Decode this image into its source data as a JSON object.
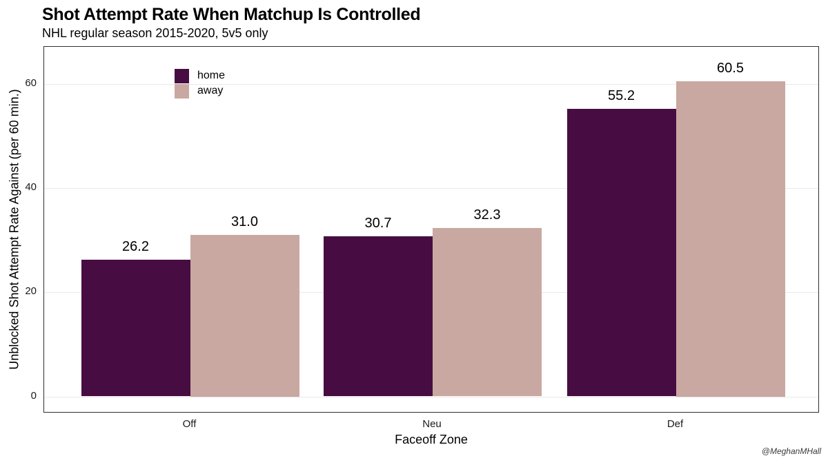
{
  "header": {
    "title": "Shot Attempt Rate When Matchup Is Controlled",
    "subtitle": "NHL regular season 2015-2020, 5v5 only"
  },
  "caption": "@MeghanMHall",
  "chart_data": {
    "type": "bar",
    "title": "Shot Attempt Rate When Matchup Is Controlled",
    "subtitle": "NHL regular season 2015-2020, 5v5 only",
    "categories": [
      "Off",
      "Neu",
      "Def"
    ],
    "series": [
      {
        "name": "home",
        "color": "#470d42",
        "values": [
          26.2,
          30.7,
          55.2
        ]
      },
      {
        "name": "away",
        "color": "#c9a8a1",
        "values": [
          31.0,
          32.3,
          60.5
        ]
      }
    ],
    "value_labels": [
      "26.2",
      "31.0",
      "30.7",
      "32.3",
      "55.2",
      "60.5"
    ],
    "xlabel": "Faceoff Zone",
    "ylabel": "Unblocked Shot Attempt Rate Against (per 60 min.)",
    "yticks": [
      0,
      20,
      40,
      60
    ],
    "ylim": [
      -3,
      67
    ],
    "grid": "major-y-only",
    "panel_border": "#2e2e2e",
    "gridline_color": "#e9e9e9",
    "legend_position": "inside-top-left",
    "legend_labels": [
      "home",
      "away"
    ]
  }
}
